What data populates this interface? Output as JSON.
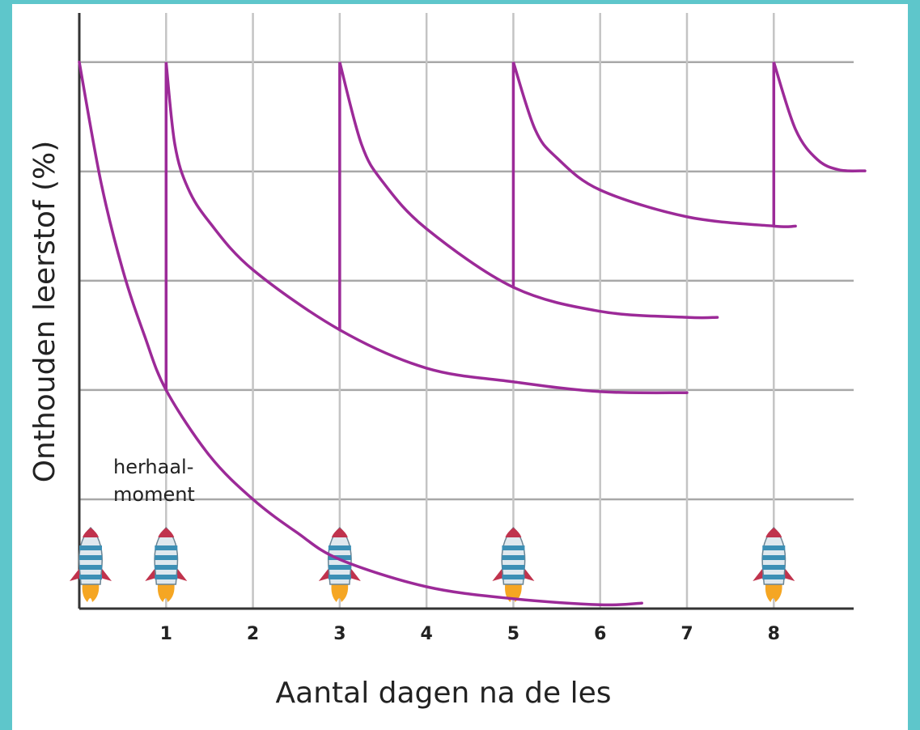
{
  "chart_data": {
    "type": "line",
    "x_label": "Aantal dagen na de les",
    "y_label": "Onthouden leerstof (%)",
    "annotation": [
      "herhaal-",
      "moment"
    ],
    "color": "#9c2a98",
    "grid": true,
    "xlim": [
      0,
      8.92
    ],
    "ylim": [
      0,
      109
    ],
    "xticks": [
      1,
      2,
      3,
      4,
      5,
      6,
      7,
      8
    ],
    "yticks": [
      0,
      20,
      40,
      60,
      80,
      100
    ],
    "rocket_days": [
      0,
      1,
      3,
      5,
      8
    ],
    "series": [
      {
        "x": [
          0,
          0.25,
          0.5,
          0.75,
          1,
          1.5,
          2,
          2.5,
          3,
          4,
          5,
          6,
          6.48
        ],
        "values": [
          100,
          78,
          62,
          50,
          40,
          28,
          20,
          14,
          9,
          4,
          1.8,
          0.7,
          1
        ]
      },
      {
        "x": [
          1,
          1,
          1.1,
          1.25,
          1.5,
          2,
          3,
          4,
          5,
          6,
          7
        ],
        "values": [
          40,
          100,
          85,
          77,
          70.7,
          62,
          51,
          44,
          41.5,
          39.7,
          39.5
        ]
      },
      {
        "x": [
          3,
          3,
          3.25,
          3.5,
          4,
          5,
          6,
          7,
          7.35
        ],
        "values": [
          51,
          100,
          85,
          78,
          69.5,
          58.8,
          54.4,
          53.3,
          53.3
        ]
      },
      {
        "x": [
          5,
          5,
          5.25,
          5.5,
          6,
          7,
          8,
          8.25
        ],
        "values": [
          58.8,
          100,
          87.7,
          82.5,
          76.6,
          71.7,
          70,
          70
        ]
      },
      {
        "x": [
          8,
          8,
          8.25,
          8.5,
          8.75,
          9.05
        ],
        "values": [
          70,
          100,
          87.7,
          82.2,
          80.3,
          80.1
        ]
      }
    ]
  }
}
